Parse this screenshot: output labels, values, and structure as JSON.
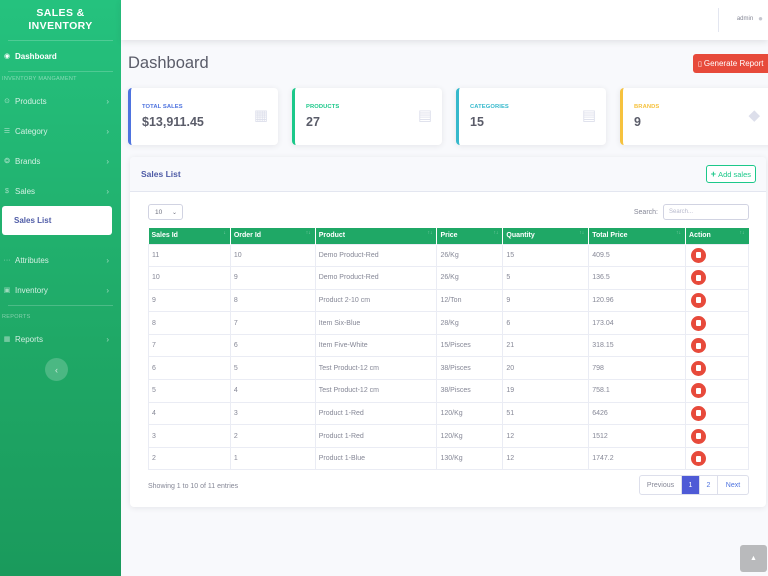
{
  "sidebar": {
    "brand_line1": "SALES &",
    "brand_line2": "INVENTORY",
    "dashboard": {
      "label": "Dashboard",
      "icon": "tachometer-icon"
    },
    "heading_inventory": "INVENTORY MANGAMENT",
    "items": [
      {
        "label": "Products",
        "icon": "circle-icon"
      },
      {
        "label": "Category",
        "icon": "list-icon"
      },
      {
        "label": "Brands",
        "icon": "copyright-icon"
      },
      {
        "label": "Sales",
        "icon": "dollar-icon"
      }
    ],
    "sub_item": "Sales List",
    "items2": [
      {
        "label": "Attributes",
        "icon": "ellipsis-icon"
      },
      {
        "label": "Inventory",
        "icon": "briefcase-icon"
      }
    ],
    "heading_reports": "REPORTS",
    "reports": {
      "label": "Reports",
      "icon": "table-icon"
    },
    "toggle": "‹"
  },
  "topbar": {
    "user": "admin",
    "user_icon": "👤"
  },
  "page": {
    "title": "Dashboard",
    "generate_button": "Generate Report"
  },
  "cards": [
    {
      "label": "TOTAL SALES",
      "value": "$13,911.45",
      "color": "#4e73df",
      "icon": "calendar-icon"
    },
    {
      "label": "PRODUCTS",
      "value": "27",
      "color": "#1cc88a",
      "icon": "clipboard-icon"
    },
    {
      "label": "CATEGORIES",
      "value": "15",
      "color": "#36b9cc",
      "icon": "clipboard-icon"
    },
    {
      "label": "BRANDS",
      "value": "9",
      "color": "#f6c23e",
      "icon": "tags-icon"
    }
  ],
  "sales_list": {
    "title": "Sales List",
    "add_button": "Add sales",
    "page_length": "10",
    "search_label": "Search:",
    "search_placeholder": "Search...",
    "columns": [
      "Sales Id",
      "Order Id",
      "Product",
      "Price",
      "Quantity",
      "Total Price",
      "Action"
    ],
    "rows": [
      [
        "11",
        "10",
        "Demo Product-Red",
        "26/Kg",
        "15",
        "409.5"
      ],
      [
        "10",
        "9",
        "Demo Product-Red",
        "26/Kg",
        "5",
        "136.5"
      ],
      [
        "9",
        "8",
        "Product 2-10 cm",
        "12/Ton",
        "9",
        "120.96"
      ],
      [
        "8",
        "7",
        "Item Six-Blue",
        "28/Kg",
        "6",
        "173.04"
      ],
      [
        "7",
        "6",
        "Item Five-White",
        "15/Pisces",
        "21",
        "318.15"
      ],
      [
        "6",
        "5",
        "Test Product-12 cm",
        "38/Pisces",
        "20",
        "798"
      ],
      [
        "5",
        "4",
        "Test Product-12 cm",
        "38/Pisces",
        "19",
        "758.1"
      ],
      [
        "4",
        "3",
        "Product 1-Red",
        "120/Kg",
        "51",
        "6426"
      ],
      [
        "3",
        "2",
        "Product 1-Red",
        "120/Kg",
        "12",
        "1512"
      ],
      [
        "2",
        "1",
        "Product 1-Blue",
        "130/Kg",
        "12",
        "1747.2"
      ]
    ],
    "info": "Showing 1 to 10 of 11 entries",
    "pagination": {
      "previous": "Previous",
      "pages": [
        "1",
        "2"
      ],
      "current": "1",
      "next": "Next"
    }
  },
  "colors": {
    "sidebar": "#1fa866",
    "danger": "#e74a3b",
    "primary": "#4e5ad6"
  }
}
